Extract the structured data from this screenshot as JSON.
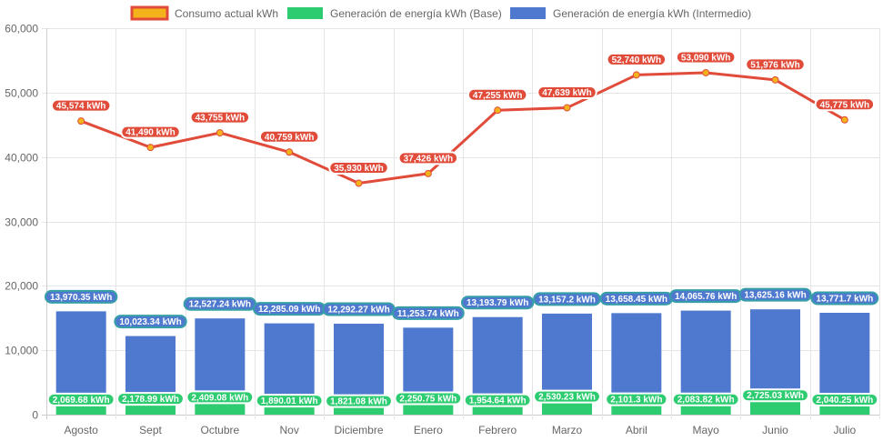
{
  "chart_data": {
    "type": "bar",
    "categories": [
      "Agosto",
      "Sept",
      "Octubre",
      "Nov",
      "Diciembre",
      "Enero",
      "Febrero",
      "Marzo",
      "Abril",
      "Mayo",
      "Junio",
      "Julio"
    ],
    "ylim": [
      0,
      60000
    ],
    "yticks": [
      0,
      10000,
      20000,
      30000,
      40000,
      50000,
      60000
    ],
    "ytick_labels": [
      "0",
      "10,000",
      "20,000",
      "30,000",
      "40,000",
      "50,000",
      "60,000"
    ],
    "legend_position": "top",
    "grid": true,
    "series": [
      {
        "name": "Consumo actual kWh",
        "type": "line",
        "color": "#e04b3a",
        "point_color": "#f5b31b",
        "values": [
          45574,
          41490,
          43755,
          40759,
          35930,
          37426,
          47255,
          47639,
          52740,
          53090,
          51976,
          45775
        ],
        "labels": [
          "45,574 kWh",
          "41,490 kWh",
          "43,755 kWh",
          "40,759 kWh",
          "35,930 kWh",
          "37,426 kWh",
          "47,255 kWh",
          "47,639 kWh",
          "52,740 kWh",
          "53,090 kWh",
          "51,976 kWh",
          "45,775 kWh"
        ]
      },
      {
        "name": "Generación de energía kWh (Base)",
        "type": "bar",
        "color": "#2ecc71",
        "values": [
          2069.68,
          2178.99,
          2409.08,
          1890.01,
          1821.08,
          2250.75,
          1954.64,
          2530.23,
          2101.3,
          2083.82,
          2725.03,
          2040.25
        ],
        "labels": [
          "2,069.68 kWh",
          "2,178.99 kWh",
          "2,409.08 kWh",
          "1,890.01 kWh",
          "1,821.08 kWh",
          "2,250.75 kWh",
          "1,954.64 kWh",
          "2,530.23 kWh",
          "2,101.3 kWh",
          "2,083.82 kWh",
          "2,725.03 kWh",
          "2,040.25 kWh"
        ]
      },
      {
        "name": "Generación de energía kWh (Intermedio)",
        "type": "bar",
        "color": "#4e79cf",
        "values": [
          13970.35,
          10023.34,
          12527.24,
          12285.09,
          12292.27,
          11253.74,
          13193.79,
          13157.2,
          13658.45,
          14065.76,
          13625.16,
          13771.7
        ],
        "labels": [
          "13,970.35 kWh",
          "10,023.34 kWh",
          "12,527.24 kWh",
          "12,285.09 kWh",
          "12,292.27 kWh",
          "11,253.74 kWh",
          "13,193.79 kWh",
          "13,157.2 kWh",
          "13,658.45 kWh",
          "14,065.76 kWh",
          "13,625.16 kWh",
          "13,771.7 kWh"
        ]
      }
    ]
  }
}
